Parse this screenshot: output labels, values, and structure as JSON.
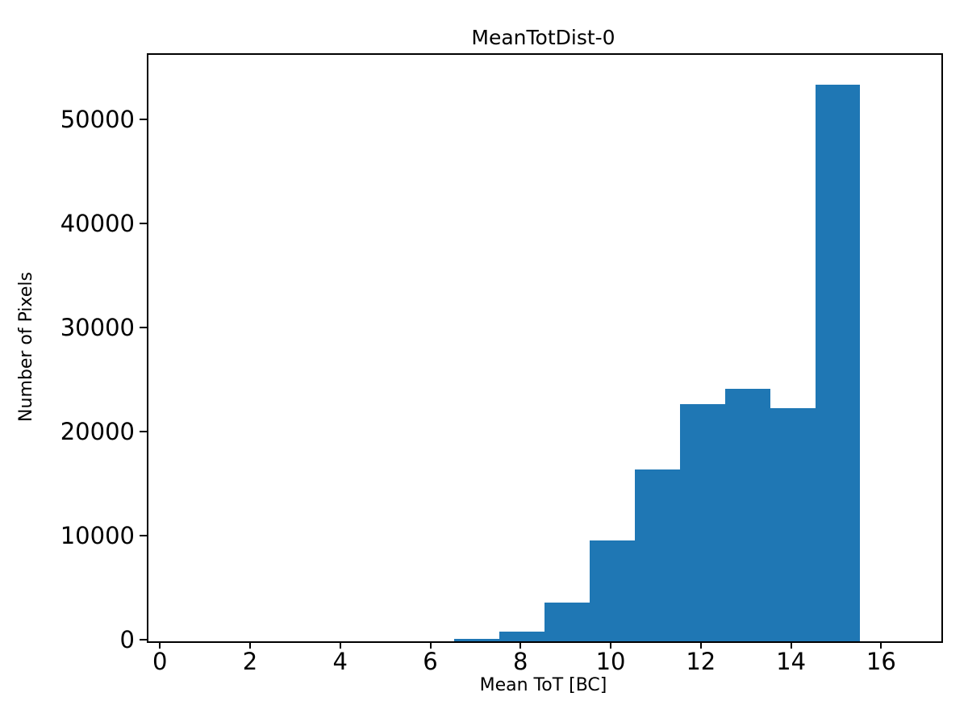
{
  "figure": {
    "title": "MeanTotDist-0"
  },
  "chart_data": {
    "type": "bar",
    "subtype": "histogram",
    "title": "MeanTotDist-0",
    "xlabel": "Mean ToT [BC]",
    "ylabel": "Number of Pixels",
    "bin_edges": [
      6.5,
      7.5,
      8.5,
      9.5,
      10.5,
      11.5,
      12.5,
      13.5,
      14.5,
      15.5
    ],
    "counts": [
      200,
      900,
      3700,
      9700,
      16500,
      22800,
      24300,
      22400,
      53500
    ],
    "bin_width": 1,
    "xlim": [
      -0.29,
      17.3
    ],
    "ylim": [
      0,
      56400
    ],
    "xticks": [
      0,
      2,
      4,
      6,
      8,
      10,
      12,
      14,
      16
    ],
    "xtick_labels": [
      "0",
      "2",
      "4",
      "6",
      "8",
      "10",
      "12",
      "14",
      "16"
    ],
    "yticks": [
      0,
      10000,
      20000,
      30000,
      40000,
      50000
    ],
    "ytick_labels": [
      "0",
      "10000",
      "20000",
      "30000",
      "40000",
      "50000"
    ],
    "bar_color": "#1f77b4",
    "axis_color": "#000000",
    "background_color": "#ffffff",
    "grid": false,
    "legend": null
  }
}
